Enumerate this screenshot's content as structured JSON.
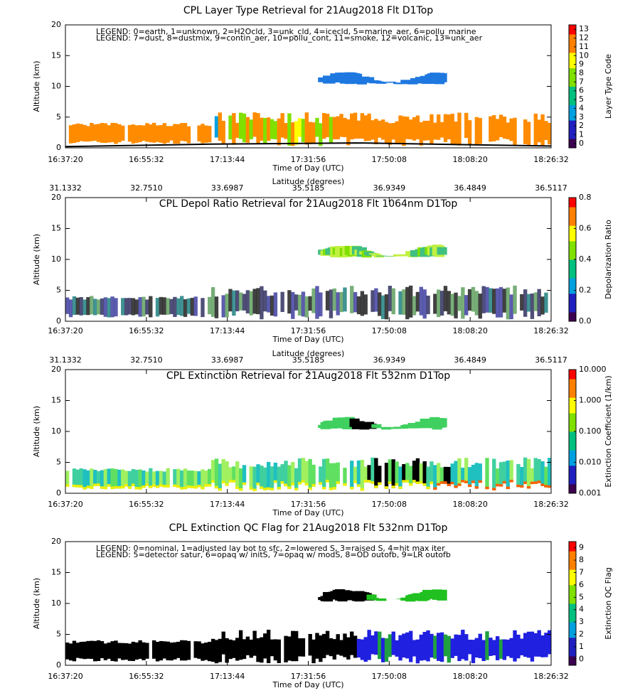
{
  "chart_data": [
    {
      "type": "curtain",
      "title": "CPL Layer Type Retrieval for 21Aug2018 Flt D1Top",
      "ylabel": "Altitude (km)",
      "ylim": [
        0,
        20
      ],
      "yticks": [
        0,
        5,
        10,
        15,
        20
      ],
      "x_labels": [
        "16:37:20",
        "16:55:32",
        "17:13:44",
        "17:31:56",
        "17:50:08",
        "18:08:20",
        "18:26:32"
      ],
      "xlabel": "Time of Day (UTC)",
      "legend": [
        "LEGEND: 0=earth, 1=unknown, 2=H2Ocld, 3=unk_cld, 4=icecld, 5=marine_aer, 6=pollu_marine",
        "LEGEND: 7=dust, 8=dustmix, 9=contin_aer, 10=pollu_cont, 11=smoke, 12=volcanic, 13=unk_aer"
      ],
      "colorbar": {
        "label": "Layer Type Code",
        "lim": [
          -0.5,
          13.5
        ],
        "ticks": [
          0,
          1,
          2,
          3,
          4,
          5,
          6,
          7,
          8,
          9,
          10,
          11,
          12,
          13
        ]
      }
    },
    {
      "type": "curtain",
      "title": "CPL Depol Ratio Retrieval for 21Aug2018 Flt 1064nm D1Top",
      "ylabel": "Altitude (km)",
      "ylim": [
        0,
        20
      ],
      "yticks": [
        0,
        5,
        10,
        15,
        20
      ],
      "x_labels": [
        "16:37:20",
        "16:55:32",
        "17:13:44",
        "17:31:56",
        "17:50:08",
        "18:08:20",
        "18:26:32"
      ],
      "xlabel": "Time of Day (UTC)",
      "x2_labels": [
        "31.1332",
        "32.7510",
        "33.6987",
        "35.5185",
        "36.9349",
        "36.4849",
        "36.5117"
      ],
      "x2label": "Latitude (degrees)",
      "colorbar": {
        "label": "Depolarization Ratio",
        "lim": [
          0,
          0.8
        ],
        "ticks": [
          {
            "value": 0,
            "label": "0.0"
          },
          {
            "value": 0.2,
            "label": "0.2"
          },
          {
            "value": 0.4,
            "label": "0.4"
          },
          {
            "value": 0.6,
            "label": "0.6"
          },
          {
            "value": 0.8,
            "label": "0.8"
          }
        ]
      }
    },
    {
      "type": "curtain",
      "title": "CPL Extinction Retrieval for 21Aug2018 Flt 532nm D1Top",
      "ylabel": "Altitude (km)",
      "ylim": [
        0,
        20
      ],
      "yticks": [
        0,
        5,
        10,
        15,
        20
      ],
      "x_labels": [
        "16:37:20",
        "16:55:32",
        "17:13:44",
        "17:31:56",
        "17:50:08",
        "18:08:20",
        "18:26:32"
      ],
      "xlabel": "Time of Day (UTC)",
      "x2_labels": [
        "31.1332",
        "32.7510",
        "33.6987",
        "35.5185",
        "36.9349",
        "36.4849",
        "36.5117"
      ],
      "x2label": "Latitude (degrees)",
      "colorbar": {
        "label": "Extinction Coefficient (1/km)",
        "log": true,
        "lim": [
          0.001,
          10
        ],
        "ticks": [
          {
            "value": 0.001,
            "label": "0.001"
          },
          {
            "value": 0.01,
            "label": "0.010"
          },
          {
            "value": 0.1,
            "label": "0.100"
          },
          {
            "value": 1,
            "label": "1.000"
          },
          {
            "value": 10,
            "label": "10.000"
          }
        ]
      }
    },
    {
      "type": "curtain",
      "title": "CPL Extinction QC Flag for 21Aug2018 Flt 532nm D1Top",
      "ylabel": "Altitude (km)",
      "ylim": [
        0,
        20
      ],
      "yticks": [
        0,
        5,
        10,
        15,
        20
      ],
      "x_labels": [
        "16:37:20",
        "16:55:32",
        "17:13:44",
        "17:31:56",
        "17:50:08",
        "18:08:20",
        "18:26:32"
      ],
      "xlabel": "Time of Day (UTC)",
      "legend": [
        "LEGEND: 0=nominal, 1=adjusted lay bot to sfc, 2=lowered S, 3=raised S, 4=hit max iter",
        "LEGEND: 5=detector satur, 6=opaq w/ initS, 7=opaq w/ modS, 8=OD outofb, 9=LR outofb"
      ],
      "colorbar": {
        "label": "Extinction QC Flag",
        "lim": [
          -0.5,
          9.5
        ],
        "ticks": [
          0,
          1,
          2,
          3,
          4,
          5,
          6,
          7,
          8,
          9
        ]
      }
    }
  ]
}
